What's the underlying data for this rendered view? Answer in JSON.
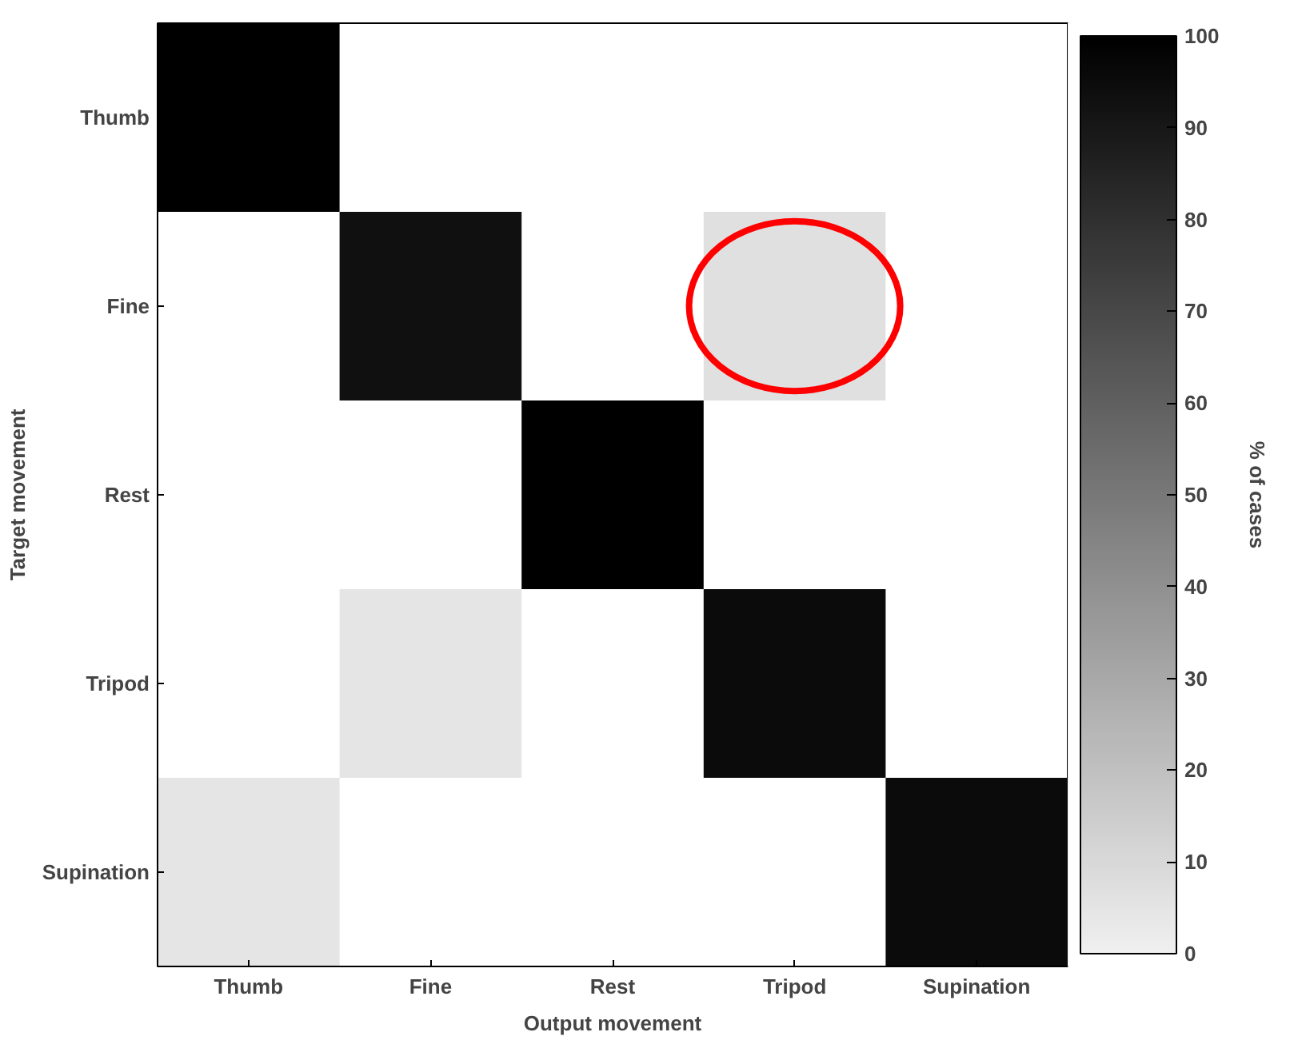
{
  "chart_data": {
    "type": "heatmap",
    "xlabel": "Output movement",
    "ylabel": "Target movement",
    "clabel": "% of cases",
    "categories": [
      "Thumb",
      "Fine",
      "Rest",
      "Tripod",
      "Supination"
    ],
    "y_categories": [
      "Thumb",
      "Fine",
      "Rest",
      "Tripod",
      "Supination"
    ],
    "cells": [
      [
        100,
        null,
        null,
        null,
        null
      ],
      [
        null,
        93,
        null,
        7,
        null
      ],
      [
        null,
        null,
        100,
        null,
        null
      ],
      [
        null,
        5,
        null,
        95,
        null
      ],
      [
        5,
        null,
        null,
        null,
        95
      ]
    ],
    "clim": [
      0,
      100
    ],
    "cticks": [
      0,
      10,
      20,
      30,
      40,
      50,
      60,
      70,
      80,
      90,
      100
    ]
  }
}
